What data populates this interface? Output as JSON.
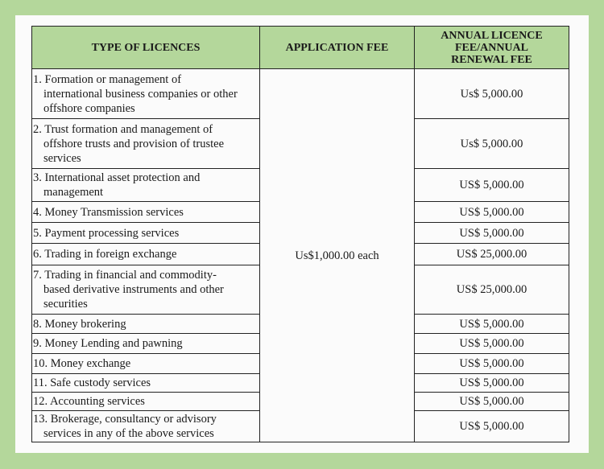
{
  "headers": {
    "type": "TYPE OF LICENCES",
    "application_fee": "APPLICATION FEE",
    "annual_fee": "ANNUAL LICENCE FEE/ANNUAL RENEWAL FEE"
  },
  "application_fee_value": "Us$1,000.00 each",
  "rows": [
    {
      "first": "1. Formation or management of",
      "rest": "international business companies or other offshore companies",
      "fee": "Us$ 5,000.00"
    },
    {
      "first": "2. Trust formation and management of",
      "rest": "offshore trusts and provision of trustee services",
      "fee": "Us$ 5,000.00"
    },
    {
      "first": "3. International asset protection and",
      "rest": "management",
      "fee": "US$ 5,000.00"
    },
    {
      "first": "4. Money Transmission services",
      "rest": "",
      "fee": "US$ 5,000.00"
    },
    {
      "first": "5. Payment processing services",
      "rest": "",
      "fee": "US$ 5,000.00"
    },
    {
      "first": "6. Trading in foreign exchange",
      "rest": "",
      "fee": "US$ 25,000.00"
    },
    {
      "first": "7. Trading in financial and commodity-",
      "rest": "based derivative instruments and other securities",
      "fee": "US$ 25,000.00"
    },
    {
      "first": "8. Money brokering",
      "rest": "",
      "fee": "US$ 5,000.00"
    },
    {
      "first": "9. Money Lending and pawning",
      "rest": "",
      "fee": "US$ 5,000.00"
    },
    {
      "first": "10. Money exchange",
      "rest": "",
      "fee": "US$ 5,000.00"
    },
    {
      "first": "11. Safe custody services",
      "rest": "",
      "fee": "US$ 5,000.00"
    },
    {
      "first": "12. Accounting services",
      "rest": "",
      "fee": "US$ 5,000.00"
    },
    {
      "first": "13. Brokerage, consultancy or advisory",
      "rest": "services in any of the above services",
      "fee": "US$ 5,000.00"
    }
  ]
}
